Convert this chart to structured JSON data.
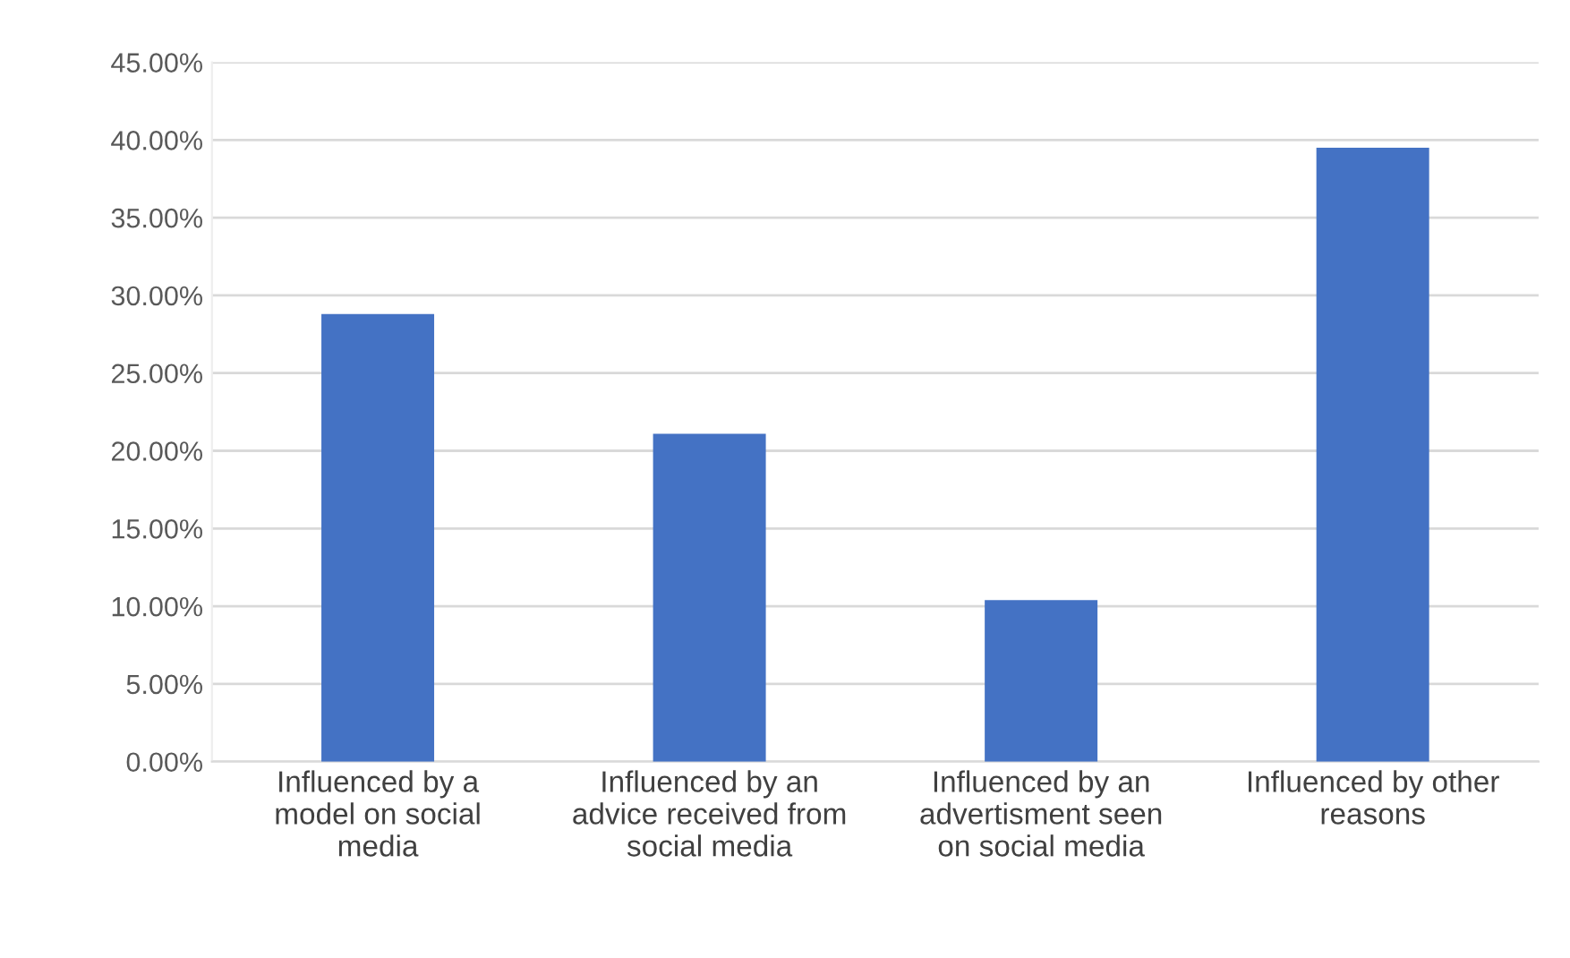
{
  "chart_data": {
    "type": "bar",
    "categories": [
      "Influenced by a\nmodel on social\nmedia",
      "Influenced by an\nadvice received from\nsocial media",
      "Influenced by an\nadvertisment seen\non social media",
      "Influenced by other\nreasons"
    ],
    "values": [
      28.8,
      21.1,
      10.4,
      39.5
    ],
    "color": "#4472c4",
    "ylim": [
      0,
      45
    ],
    "yticks": [
      {
        "value": 0,
        "label": "0.00%"
      },
      {
        "value": 5,
        "label": "5.00%"
      },
      {
        "value": 10,
        "label": "10.00%"
      },
      {
        "value": 15,
        "label": "15.00%"
      },
      {
        "value": 20,
        "label": "20.00%"
      },
      {
        "value": 25,
        "label": "25.00%"
      },
      {
        "value": 30,
        "label": "30.00%"
      },
      {
        "value": 35,
        "label": "35.00%"
      },
      {
        "value": 40,
        "label": "40.00%"
      },
      {
        "value": 45,
        "label": "45.00%"
      }
    ],
    "grid": "y",
    "legend": false
  }
}
